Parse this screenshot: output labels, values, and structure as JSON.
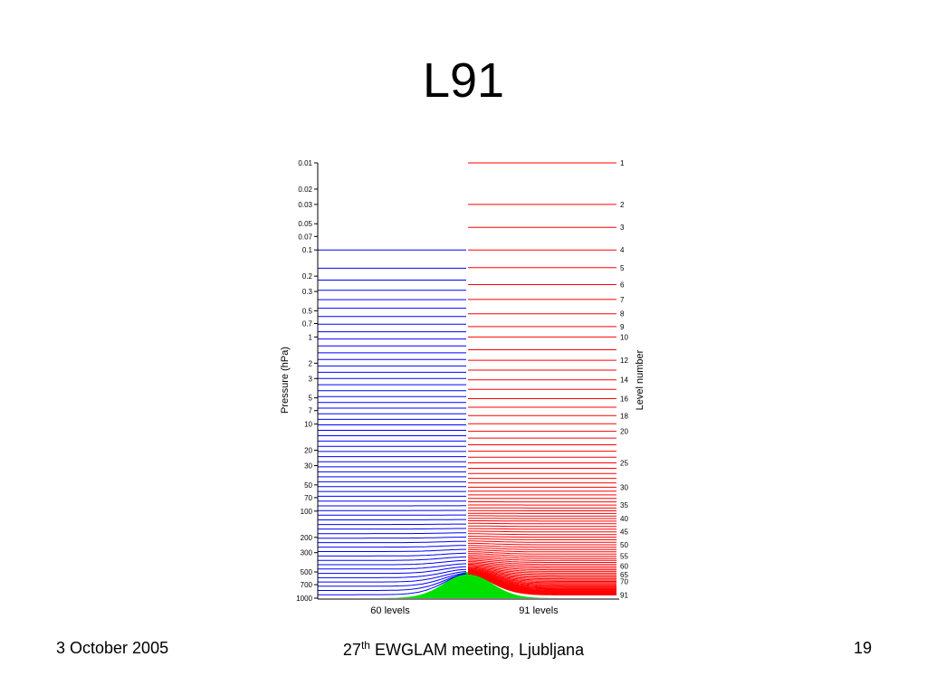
{
  "slide": {
    "title": "L91",
    "footer_left": "3 October 2005",
    "footer_center_ordinal": "27",
    "footer_center_suffix": "th",
    "footer_center_rest": " EWGLAM meeting, Ljubljana",
    "page_number": "19"
  },
  "chart_data": {
    "type": "line",
    "title": "",
    "ylabel": "Pressure (hPa)",
    "y2label": "Level number",
    "y_scale": "log",
    "ylim": [
      0.01,
      1000
    ],
    "pressure_ticks": [
      0.01,
      0.02,
      0.03,
      0.05,
      0.07,
      0.1,
      0.2,
      0.3,
      0.5,
      0.7,
      1,
      2,
      3,
      5,
      7,
      10,
      20,
      30,
      50,
      70,
      100,
      200,
      300,
      500,
      700,
      1000
    ],
    "pressure_tick_labels": [
      "0.01",
      "0.02",
      "0.03",
      "0.05",
      "0.07",
      "0.1",
      "0.2",
      "0.3",
      "0.5",
      "0.7",
      "1",
      "2",
      "3",
      "5",
      "7",
      "10",
      "20",
      "30",
      "50",
      "70",
      "100",
      "200",
      "300",
      "500",
      "700",
      "1000"
    ],
    "level_ticks": [
      {
        "level": 1,
        "label": "1"
      },
      {
        "level": 2,
        "label": "2"
      },
      {
        "level": 3,
        "label": "3"
      },
      {
        "level": 4,
        "label": "4"
      },
      {
        "level": 5,
        "label": "5"
      },
      {
        "level": 6,
        "label": "6"
      },
      {
        "level": 7,
        "label": "7"
      },
      {
        "level": 8,
        "label": "8"
      },
      {
        "level": 9,
        "label": "9"
      },
      {
        "level": 10,
        "label": "10"
      },
      {
        "level": 12,
        "label": "12"
      },
      {
        "level": 14,
        "label": "14"
      },
      {
        "level": 16,
        "label": "16"
      },
      {
        "level": 18,
        "label": "18"
      },
      {
        "level": 20,
        "label": "20"
      },
      {
        "level": 25,
        "label": "25"
      },
      {
        "level": 30,
        "label": "30"
      },
      {
        "level": 35,
        "label": "35"
      },
      {
        "level": 40,
        "label": "40"
      },
      {
        "level": 45,
        "label": "45"
      },
      {
        "level": 50,
        "label": "50"
      },
      {
        "level": 55,
        "label": "55"
      },
      {
        "level": 60,
        "label": "60"
      },
      {
        "level": 65,
        "label": "65"
      },
      {
        "level": 70,
        "label": "70"
      },
      {
        "level": 91,
        "label": "91"
      }
    ],
    "level_pressures_hpa": [
      0.01,
      0.03,
      0.055,
      0.1,
      0.16,
      0.25,
      0.37,
      0.54,
      0.76,
      1.0,
      1.4,
      1.85,
      2.4,
      3.1,
      4.0,
      5.1,
      6.4,
      8.0,
      9.9,
      12.1,
      14.5,
      17.3,
      20.5,
      24.0,
      27.9,
      32.2,
      37.0,
      42.0,
      47.4,
      53.1,
      59.0,
      65.2,
      71.6,
      78.3,
      85.1,
      92.1,
      99.2,
      106.4,
      113.8,
      121.7,
      130.3,
      139.7,
      150.0,
      161.2,
      173.2,
      185.9,
      199.4,
      213.5,
      228.3,
      243.8,
      259.9,
      276.6,
      293.9,
      311.8,
      330.3,
      349.3,
      368.8,
      388.7,
      409.0,
      429.6,
      450.5,
      471.6,
      492.9,
      514.3,
      535.8,
      557.3,
      578.7,
      600.0,
      621.1,
      641.9,
      662.3,
      682.3,
      701.8,
      720.7,
      739.0,
      756.6,
      773.4,
      789.4,
      804.6,
      819.0,
      832.5,
      845.1,
      856.8,
      867.6,
      877.5,
      886.5,
      894.6,
      901.8,
      908.1,
      913.6,
      918.2
    ],
    "series": [
      {
        "name": "60 levels",
        "color": "#0000ff",
        "n_levels": 60
      },
      {
        "name": "91 levels",
        "color": "#ff0000",
        "n_levels": 91
      }
    ],
    "orography_color": "#00e000",
    "orography_peak_pressure_hpa": 500,
    "surface_pressure_hpa": 1000
  }
}
